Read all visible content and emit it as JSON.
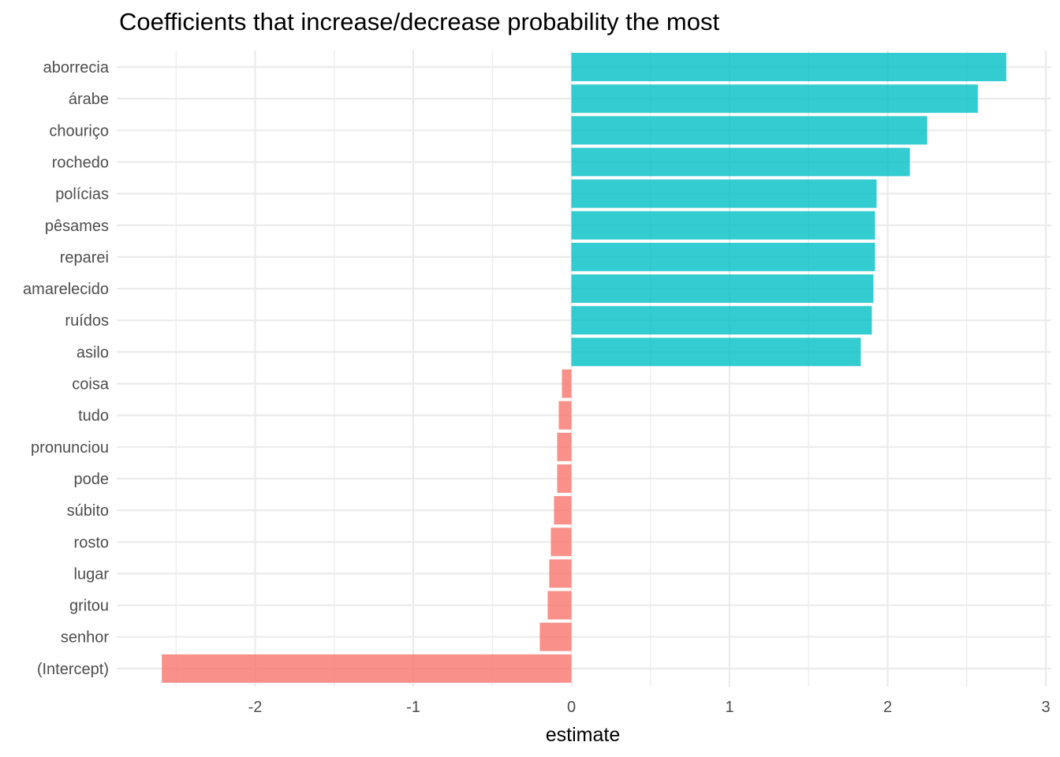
{
  "chart_data": {
    "type": "bar",
    "orientation": "horizontal",
    "title": "Coefficients that increase/decrease probability the most",
    "xlabel": "estimate",
    "ylabel": "",
    "xlim": [
      -2.85,
      3.0
    ],
    "x_ticks": [
      -2,
      -1,
      0,
      1,
      2,
      3
    ],
    "x_tick_labels": [
      "-2",
      "-1",
      "0",
      "1",
      "2",
      "3"
    ],
    "grid": true,
    "legend": "none",
    "colors": {
      "positive": "#00BFC4",
      "negative": "#F8766D",
      "grid": "#ebebeb"
    },
    "categories": [
      "aborrecia",
      "árabe",
      "chouriço",
      "rochedo",
      "polícias",
      "pêsames",
      "reparei",
      "amarelecido",
      "ruídos",
      "asilo",
      "coisa",
      "tudo",
      "pronunciou",
      "pode",
      "súbito",
      "rosto",
      "lugar",
      "gritou",
      "senhor",
      "(Intercept)"
    ],
    "values": [
      2.75,
      2.57,
      2.25,
      2.14,
      1.93,
      1.92,
      1.92,
      1.91,
      1.9,
      1.83,
      -0.06,
      -0.08,
      -0.09,
      -0.09,
      -0.11,
      -0.13,
      -0.14,
      -0.15,
      -0.2,
      -2.59
    ]
  }
}
